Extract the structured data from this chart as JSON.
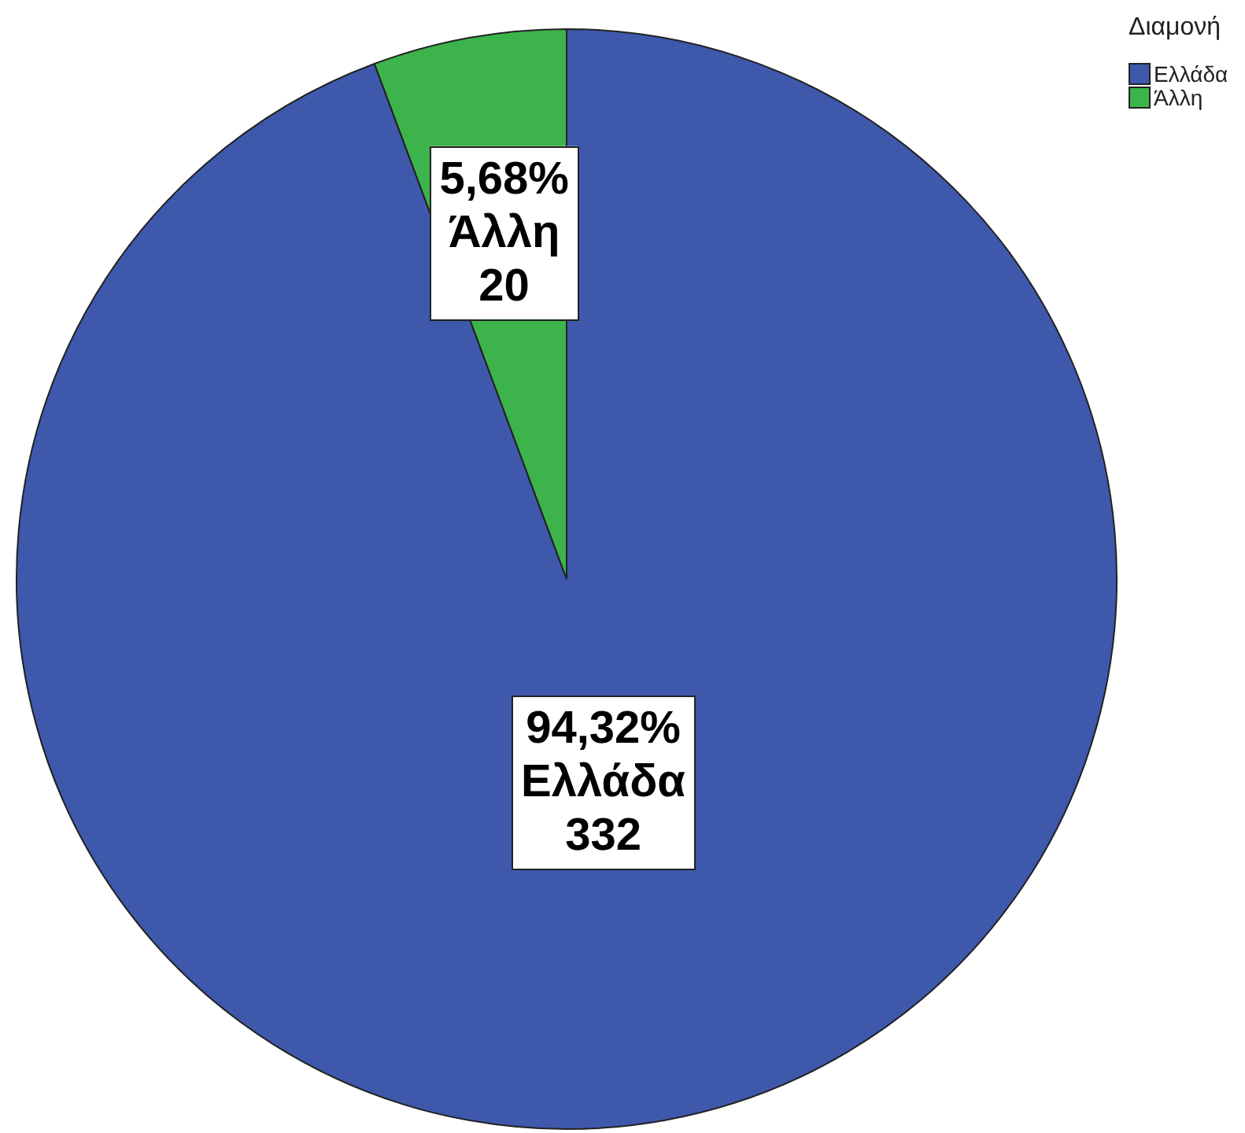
{
  "chart_data": {
    "type": "pie",
    "legend_title": "Διαμονή",
    "categories": [
      "Ελλάδα",
      "Άλλη"
    ],
    "values": [
      94.32,
      5.68
    ],
    "colors": [
      "#3e58ac",
      "#3cb44b"
    ],
    "value_labels": [
      "94,32%",
      "5,68%"
    ],
    "annotations": [
      "332",
      "20"
    ],
    "legend": "top right"
  }
}
